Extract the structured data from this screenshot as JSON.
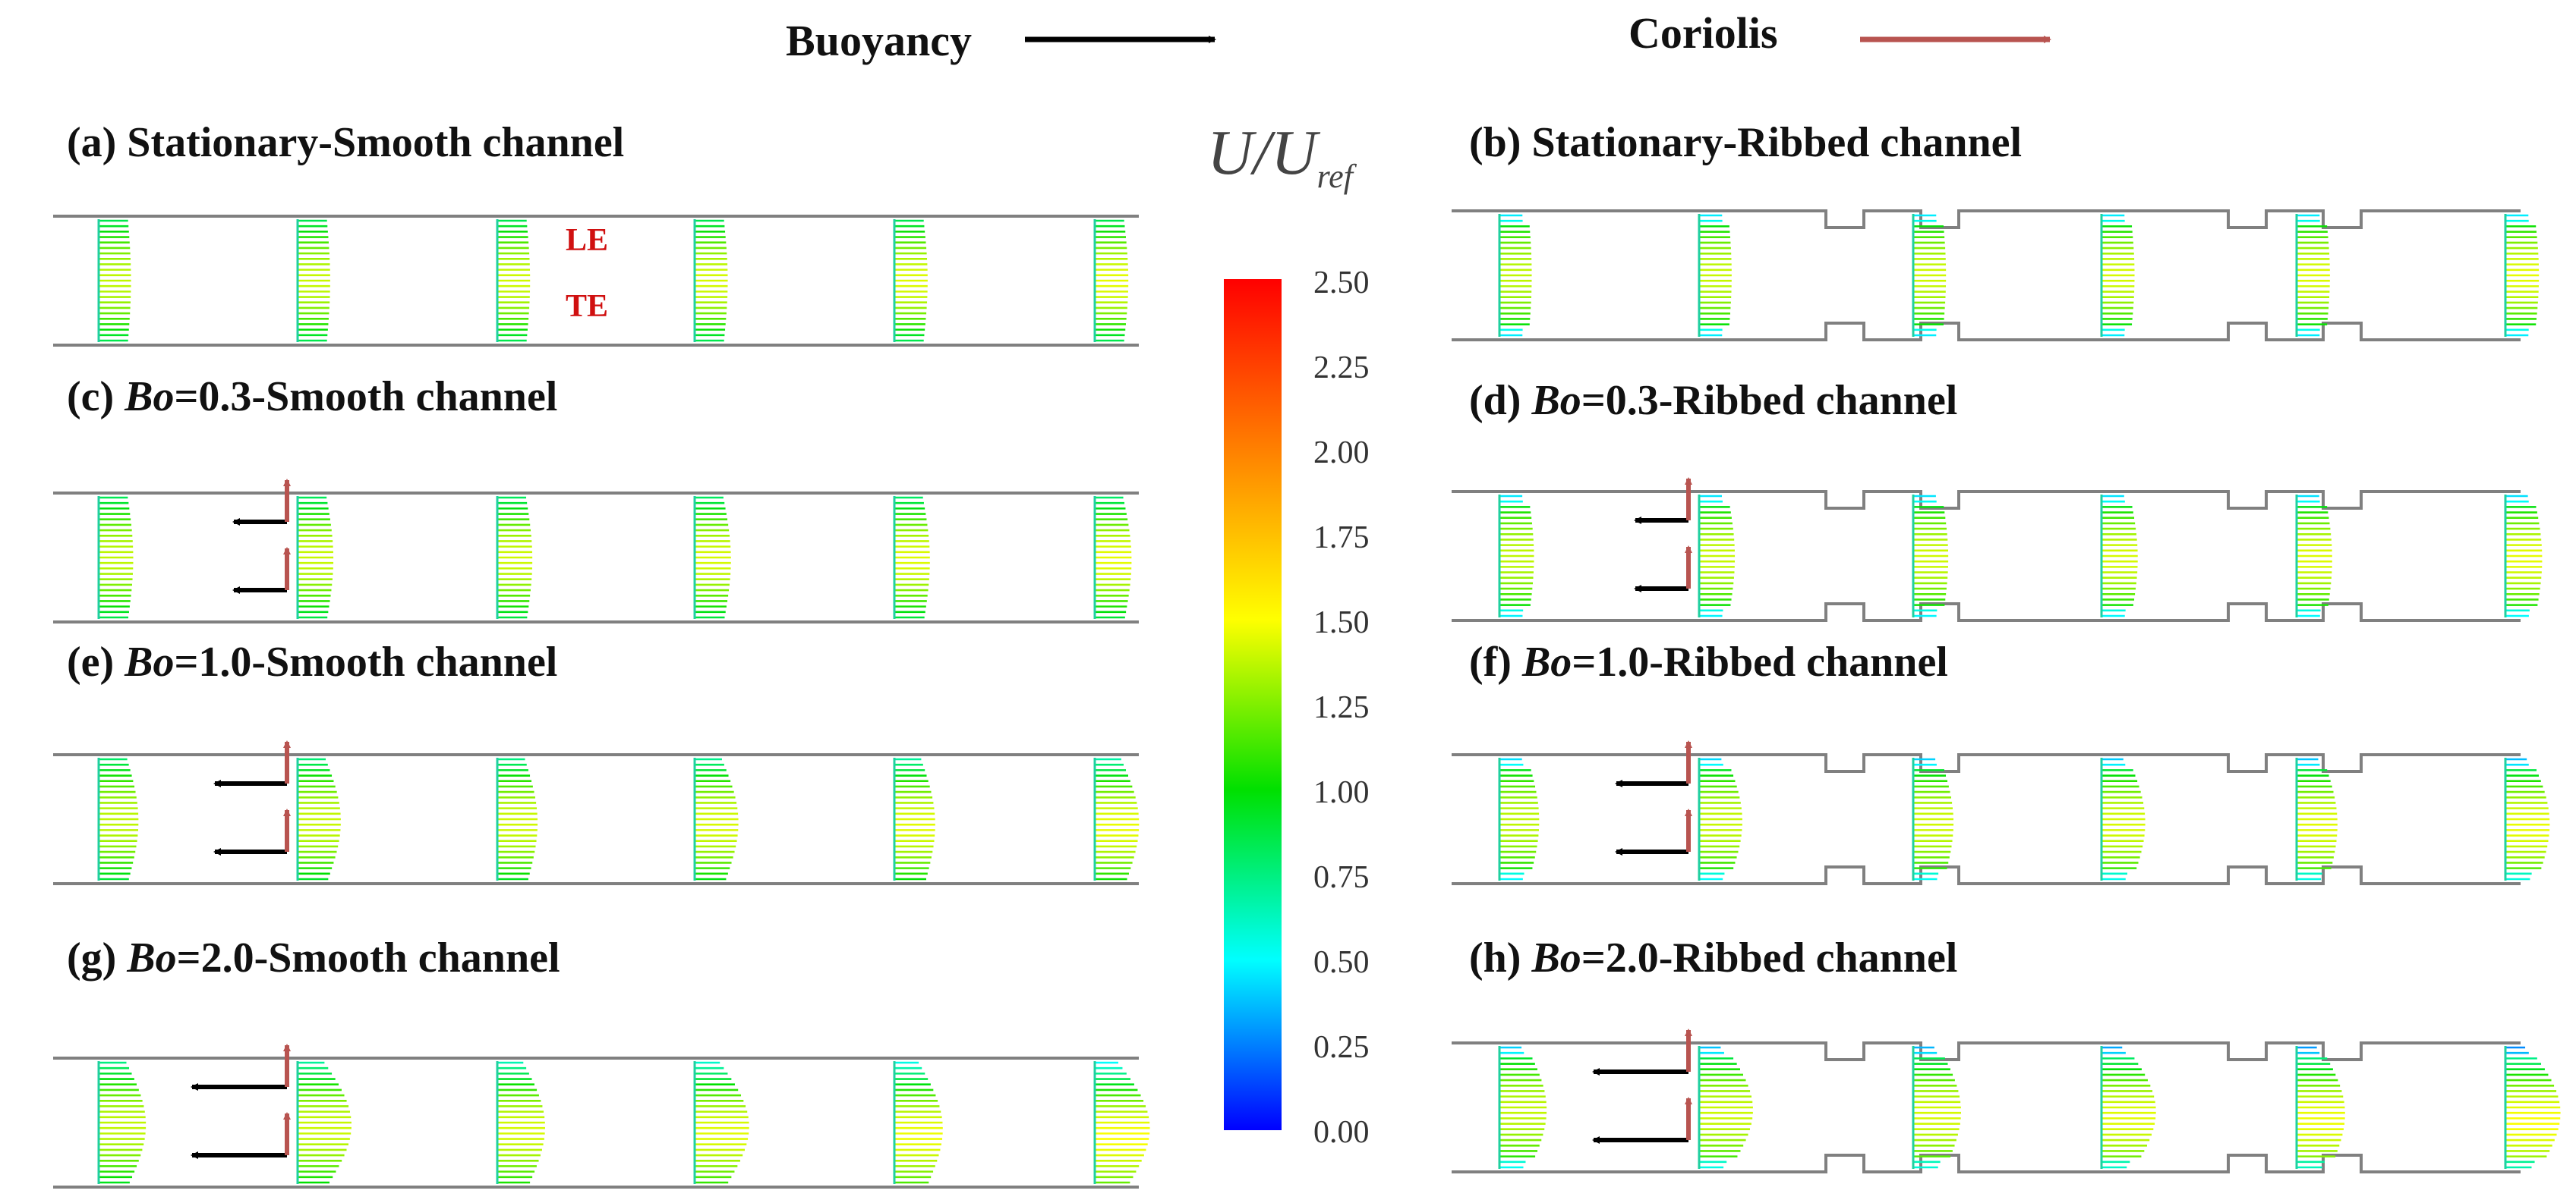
{
  "header": {
    "buoyancy_label": "Buoyancy",
    "coriolis_label": "Coriolis",
    "buoyancy_arrow_color": "#000000",
    "coriolis_arrow_color": "#b85450"
  },
  "panels": [
    {
      "id": "a",
      "prefix": "(a) ",
      "italic": "",
      "rest": "Stationary-Smooth channel",
      "type": "smooth",
      "bo": 0.0
    },
    {
      "id": "b",
      "prefix": "(b) ",
      "italic": "",
      "rest": "Stationary-Ribbed channel",
      "type": "ribbed",
      "bo": 0.0
    },
    {
      "id": "c",
      "prefix": "(c) ",
      "italic": "Bo",
      "rest": "=0.3-Smooth channel",
      "type": "smooth",
      "bo": 0.3
    },
    {
      "id": "d",
      "prefix": "(d) ",
      "italic": "Bo",
      "rest": "=0.3-Ribbed channel",
      "type": "ribbed",
      "bo": 0.3
    },
    {
      "id": "e",
      "prefix": "(e) ",
      "italic": "Bo",
      "rest": "=1.0-Smooth channel",
      "type": "smooth",
      "bo": 1.0
    },
    {
      "id": "f",
      "prefix": "(f) ",
      "italic": "Bo",
      "rest": "=1.0-Ribbed channel",
      "type": "ribbed",
      "bo": 1.0
    },
    {
      "id": "g",
      "prefix": "(g) ",
      "italic": "Bo",
      "rest": "=2.0-Smooth channel",
      "type": "smooth",
      "bo": 2.0
    },
    {
      "id": "h",
      "prefix": "(h) ",
      "italic": "Bo",
      "rest": "=2.0-Ribbed channel",
      "type": "ribbed",
      "bo": 2.0
    }
  ],
  "wall_labels": {
    "leading": "LE",
    "trailing": "TE"
  },
  "colorbar": {
    "symbol_main": "U/U",
    "symbol_sub": "ref",
    "min": 0.0,
    "max": 2.5,
    "ticks": [
      "2.50",
      "2.25",
      "2.00",
      "1.75",
      "1.50",
      "1.25",
      "1.00",
      "0.75",
      "0.50",
      "0.25",
      "0.00"
    ],
    "colors": [
      "#ff0000",
      "#ff8000",
      "#ffff00",
      "#00e000",
      "#00ffff",
      "#0000ff"
    ]
  }
}
